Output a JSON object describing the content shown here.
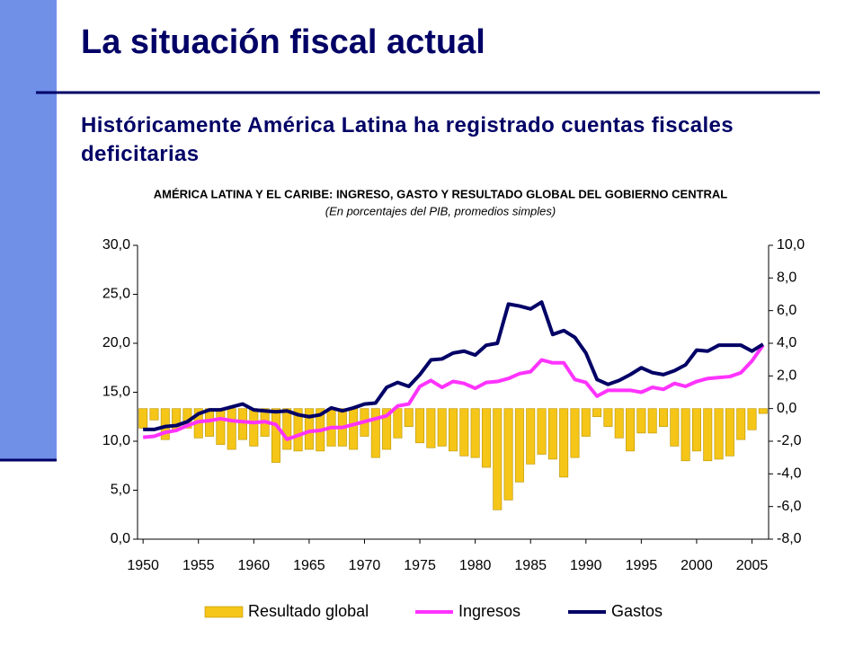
{
  "slide": {
    "title": "La situación fiscal actual",
    "subtitle": "Históricamente América Latina ha registrado cuentas fiscales deficitarias"
  },
  "chart_data": {
    "type": "combo",
    "title": "AMÉRICA LATINA Y EL CARIBE: INGRESO, GASTO Y RESULTADO GLOBAL DEL GOBIERNO CENTRAL",
    "subtitle": "(En porcentajes del PIB, promedios simples)",
    "x": [
      1950,
      1951,
      1952,
      1953,
      1954,
      1955,
      1956,
      1957,
      1958,
      1959,
      1960,
      1961,
      1962,
      1963,
      1964,
      1965,
      1966,
      1967,
      1968,
      1969,
      1970,
      1971,
      1972,
      1973,
      1974,
      1975,
      1976,
      1977,
      1978,
      1979,
      1980,
      1981,
      1982,
      1983,
      1984,
      1985,
      1986,
      1987,
      1988,
      1989,
      1990,
      1991,
      1992,
      1993,
      1994,
      1995,
      1996,
      1997,
      1998,
      1999,
      2000,
      2001,
      2002,
      2003,
      2004,
      2005,
      2006
    ],
    "xlim": [
      1949.5,
      2006.5
    ],
    "xticks": [
      1950,
      1955,
      1960,
      1965,
      1970,
      1975,
      1980,
      1985,
      1990,
      1995,
      2000,
      2005
    ],
    "ylim": [
      0,
      30
    ],
    "yticks": [
      {
        "value": 0,
        "label": "0,0"
      },
      {
        "value": 5,
        "label": "5,0"
      },
      {
        "value": 10,
        "label": "10,0"
      },
      {
        "value": 15,
        "label": "15,0"
      },
      {
        "value": 20,
        "label": "20,0"
      },
      {
        "value": 25,
        "label": "25,0"
      },
      {
        "value": 30,
        "label": "30,0"
      }
    ],
    "y2lim": [
      -8,
      10
    ],
    "y2ticks": [
      {
        "value": -8,
        "label": "-8,0"
      },
      {
        "value": -6,
        "label": "-6,0"
      },
      {
        "value": -4,
        "label": "-4,0"
      },
      {
        "value": -2,
        "label": "-2,0"
      },
      {
        "value": 0,
        "label": "0,0"
      },
      {
        "value": 2,
        "label": "2,0"
      },
      {
        "value": 4,
        "label": "4,0"
      },
      {
        "value": 6,
        "label": "6,0"
      },
      {
        "value": 8,
        "label": "8,0"
      },
      {
        "value": 10,
        "label": "10,0"
      }
    ],
    "series": [
      {
        "name": "Resultado global",
        "type": "bar",
        "axis": "y2",
        "color": "#f5c518",
        "values": [
          -1.2,
          -0.7,
          -1.9,
          -1.3,
          -1.2,
          -1.8,
          -1.7,
          -2.2,
          -2.5,
          -1.9,
          -2.3,
          -1.7,
          -3.3,
          -2.5,
          -2.6,
          -2.5,
          -2.6,
          -2.3,
          -2.3,
          -2.5,
          -1.7,
          -3.0,
          -2.5,
          -1.8,
          -1.1,
          -2.1,
          -2.4,
          -2.3,
          -2.6,
          -2.9,
          -3.0,
          -3.6,
          -6.2,
          -5.6,
          -4.5,
          -3.4,
          -2.8,
          -3.1,
          -4.2,
          -3.0,
          -1.7,
          -0.5,
          -1.1,
          -1.8,
          -2.6,
          -1.5,
          -1.5,
          -1.1,
          -2.3,
          -3.2,
          -2.6,
          -3.2,
          -3.1,
          -2.9,
          -1.9,
          -1.3,
          -0.3
        ]
      },
      {
        "name": "Ingresos",
        "type": "line",
        "color": "#ff33ff",
        "values": [
          10.4,
          10.5,
          10.9,
          11.1,
          11.6,
          12.0,
          12.1,
          12.3,
          12.1,
          12.0,
          11.9,
          12.0,
          11.7,
          10.2,
          10.6,
          11.0,
          11.1,
          11.4,
          11.4,
          11.7,
          12.0,
          12.3,
          12.6,
          13.6,
          13.8,
          15.6,
          16.2,
          15.5,
          16.1,
          15.9,
          15.4,
          16.0,
          16.1,
          16.4,
          16.9,
          17.1,
          18.3,
          18.0,
          18.0,
          16.3,
          16.0,
          14.6,
          15.2,
          15.2,
          15.2,
          15.0,
          15.5,
          15.3,
          15.9,
          15.6,
          16.1,
          16.4,
          16.5,
          16.6,
          17.0,
          18.2,
          19.8
        ]
      },
      {
        "name": "Gastos",
        "type": "line",
        "color": "#000066",
        "values": [
          11.2,
          11.2,
          11.5,
          11.6,
          12.0,
          12.8,
          13.2,
          13.2,
          13.5,
          13.8,
          13.2,
          13.1,
          13.0,
          13.1,
          12.7,
          12.5,
          12.7,
          13.4,
          13.1,
          13.4,
          13.8,
          13.9,
          15.5,
          16.0,
          15.6,
          16.8,
          18.3,
          18.4,
          19.0,
          19.2,
          18.8,
          19.8,
          20.0,
          24.0,
          23.8,
          23.5,
          24.2,
          20.9,
          21.3,
          20.6,
          19.0,
          16.3,
          15.8,
          16.2,
          16.8,
          17.5,
          17.0,
          16.8,
          17.2,
          17.8,
          19.3,
          19.2,
          19.8,
          19.8,
          19.8,
          19.2,
          19.9
        ]
      }
    ]
  }
}
